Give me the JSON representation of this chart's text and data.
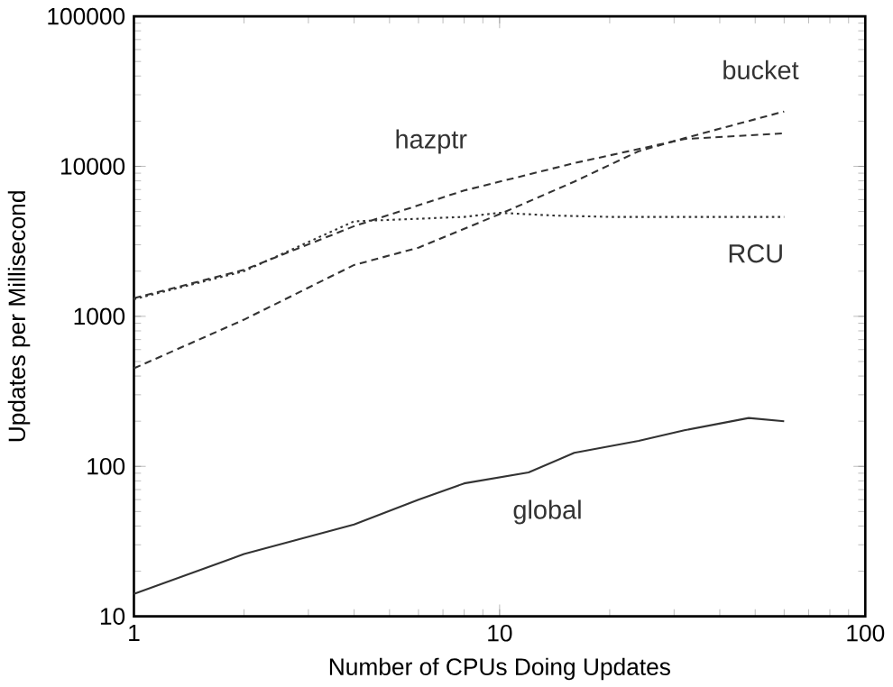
{
  "chart_data": {
    "type": "line",
    "xlabel": "Number of CPUs Doing Updates",
    "ylabel": "Updates per Millisecond",
    "log": "xy",
    "xlim": [
      1,
      100
    ],
    "ylim": [
      10,
      100000
    ],
    "xticks": [
      1,
      10,
      100
    ],
    "yticks": [
      10,
      100,
      1000,
      10000,
      100000
    ],
    "grid": false,
    "marker": "none",
    "series": [
      {
        "name": "hazptr",
        "color": "#333333",
        "line_style": "dashed",
        "x": [
          1,
          2,
          4,
          8,
          16,
          32,
          60
        ],
        "values": [
          1320,
          2040,
          3990,
          6900,
          10500,
          15200,
          16600
        ]
      },
      {
        "name": "bucket",
        "color": "#333333",
        "line_style": "dashed",
        "x": [
          1,
          2,
          4,
          6,
          10,
          16,
          24,
          32,
          60
        ],
        "values": [
          450,
          950,
          2200,
          2870,
          4800,
          7900,
          12600,
          15400,
          23200
        ]
      },
      {
        "name": "RCU",
        "color": "#333333",
        "line_style": "dotted",
        "x": [
          1,
          2,
          4,
          8,
          10,
          14,
          20,
          60
        ],
        "values": [
          1300,
          2000,
          4300,
          4600,
          4900,
          4700,
          4600,
          4600
        ]
      },
      {
        "name": "global",
        "color": "#333333",
        "line_style": "solid",
        "x": [
          1,
          2,
          4,
          6,
          8,
          12,
          16,
          24,
          32,
          48,
          60
        ],
        "values": [
          14.1,
          26,
          41,
          60,
          77,
          91,
          123,
          148,
          174,
          210,
          200
        ]
      }
    ]
  }
}
